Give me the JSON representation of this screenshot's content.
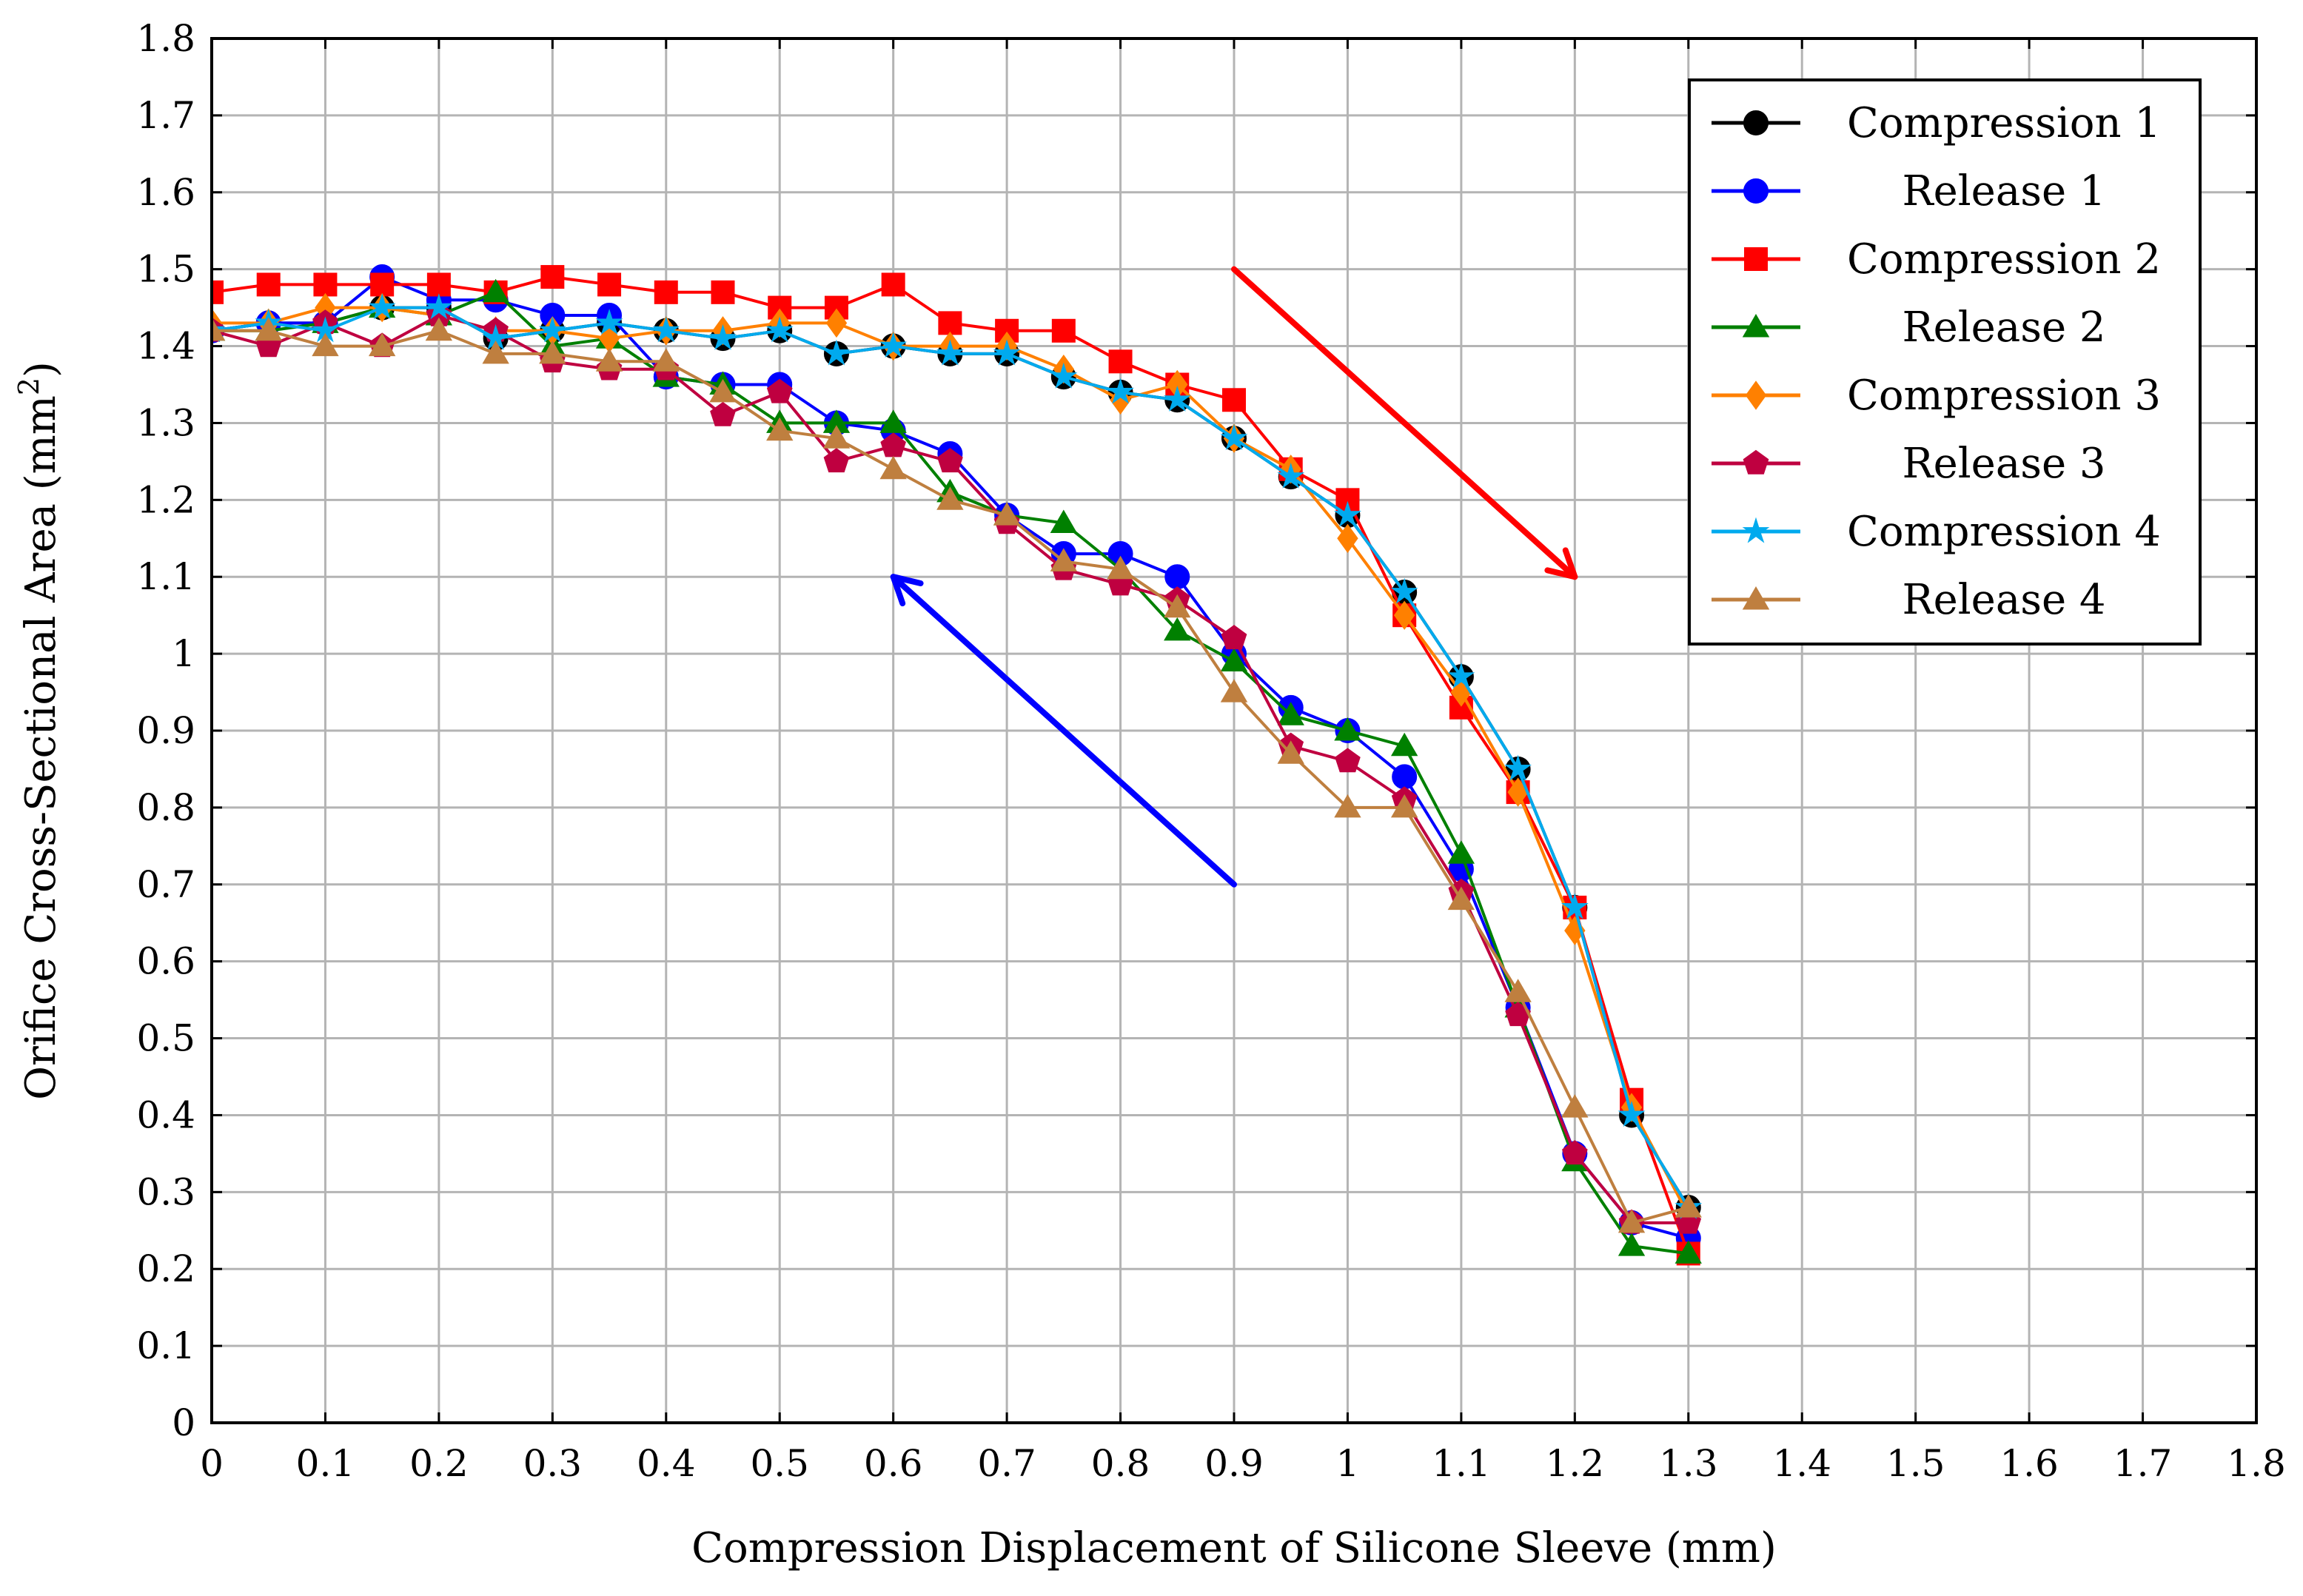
{
  "chart_data": {
    "type": "line",
    "title": "",
    "xlabel": "Compression Displacement of Silicone Sleeve (mm)",
    "ylabel": "Orifice Cross-Sectional Area (mm",
    "ylabel_sup": "2",
    "ylabel_tail": ")",
    "xlim": [
      0,
      1.8
    ],
    "ylim": [
      0,
      1.8
    ],
    "x_ticks": [
      "0",
      "0.1",
      "0.2",
      "0.3",
      "0.4",
      "0.5",
      "0.6",
      "0.7",
      "0.8",
      "0.9",
      "1",
      "1.1",
      "1.2",
      "1.3",
      "1.4",
      "1.5",
      "1.6",
      "1.7",
      "1.8"
    ],
    "y_ticks": [
      "0",
      "0.1",
      "0.2",
      "0.3",
      "0.4",
      "0.5",
      "0.6",
      "0.7",
      "0.8",
      "0.9",
      "1",
      "1.1",
      "1.2",
      "1.3",
      "1.4",
      "1.5",
      "1.6",
      "1.7",
      "1.8"
    ],
    "grid": true,
    "legend_position": "top-right",
    "x": [
      0,
      0.05,
      0.1,
      0.15,
      0.2,
      0.25,
      0.3,
      0.35,
      0.4,
      0.45,
      0.5,
      0.55,
      0.6,
      0.65,
      0.7,
      0.75,
      0.8,
      0.85,
      0.9,
      0.95,
      1,
      1.05,
      1.1,
      1.15,
      1.2,
      1.25,
      1.3
    ],
    "series": [
      {
        "name": "Compression 1",
        "color": "#000000",
        "marker": "circle",
        "values": [
          1.42,
          1.43,
          1.43,
          1.45,
          1.45,
          1.41,
          1.42,
          1.43,
          1.42,
          1.41,
          1.42,
          1.39,
          1.4,
          1.39,
          1.39,
          1.36,
          1.34,
          1.33,
          1.28,
          1.23,
          1.18,
          1.08,
          0.97,
          0.85,
          0.67,
          0.4,
          0.28
        ]
      },
      {
        "name": "Release 1",
        "color": "#0000ff",
        "marker": "circle",
        "values": [
          1.42,
          1.43,
          1.43,
          1.49,
          1.46,
          1.46,
          1.44,
          1.44,
          1.36,
          1.35,
          1.35,
          1.3,
          1.29,
          1.26,
          1.18,
          1.13,
          1.13,
          1.1,
          1.0,
          0.93,
          0.9,
          0.84,
          0.72,
          0.54,
          0.35,
          0.26,
          0.24
        ]
      },
      {
        "name": "Compression 2",
        "color": "#ff0000",
        "marker": "square",
        "values": [
          1.47,
          1.48,
          1.48,
          1.48,
          1.48,
          1.47,
          1.49,
          1.48,
          1.47,
          1.47,
          1.45,
          1.45,
          1.48,
          1.43,
          1.42,
          1.42,
          1.38,
          1.35,
          1.33,
          1.24,
          1.2,
          1.05,
          0.93,
          0.82,
          0.67,
          0.42,
          0.22
        ]
      },
      {
        "name": "Release 2",
        "color": "#008000",
        "marker": "triangle",
        "values": [
          1.42,
          1.42,
          1.43,
          1.45,
          1.44,
          1.47,
          1.4,
          1.41,
          1.36,
          1.35,
          1.3,
          1.3,
          1.3,
          1.21,
          1.18,
          1.17,
          1.11,
          1.03,
          0.99,
          0.92,
          0.9,
          0.88,
          0.74,
          0.54,
          0.34,
          0.23,
          0.22
        ]
      },
      {
        "name": "Compression 3",
        "color": "#ff8000",
        "marker": "diamond",
        "values": [
          1.43,
          1.43,
          1.45,
          1.45,
          1.44,
          1.42,
          1.42,
          1.41,
          1.42,
          1.42,
          1.43,
          1.43,
          1.4,
          1.4,
          1.4,
          1.37,
          1.33,
          1.35,
          1.28,
          1.24,
          1.15,
          1.05,
          0.95,
          0.82,
          0.64,
          0.41,
          0.27
        ]
      },
      {
        "name": "Release 3",
        "color": "#bf0040",
        "marker": "pentagon",
        "values": [
          1.42,
          1.4,
          1.43,
          1.4,
          1.44,
          1.42,
          1.38,
          1.37,
          1.37,
          1.31,
          1.34,
          1.25,
          1.27,
          1.25,
          1.17,
          1.11,
          1.09,
          1.07,
          1.02,
          0.88,
          0.86,
          0.81,
          0.69,
          0.53,
          0.35,
          0.26,
          0.26
        ]
      },
      {
        "name": "Compression 4",
        "color": "#00aaee",
        "marker": "star",
        "values": [
          1.42,
          1.43,
          1.42,
          1.45,
          1.45,
          1.41,
          1.42,
          1.43,
          1.42,
          1.41,
          1.42,
          1.39,
          1.4,
          1.39,
          1.39,
          1.36,
          1.34,
          1.33,
          1.28,
          1.23,
          1.18,
          1.08,
          0.97,
          0.85,
          0.67,
          0.4,
          0.28
        ]
      },
      {
        "name": "Release 4",
        "color": "#bf7f3f",
        "marker": "triangle",
        "values": [
          1.42,
          1.42,
          1.4,
          1.4,
          1.42,
          1.39,
          1.39,
          1.38,
          1.38,
          1.34,
          1.29,
          1.28,
          1.24,
          1.2,
          1.18,
          1.12,
          1.11,
          1.06,
          0.95,
          0.87,
          0.8,
          0.8,
          0.68,
          0.56,
          0.41,
          0.26,
          0.28
        ]
      }
    ],
    "annotations": [
      {
        "type": "arrow",
        "color": "#ff0000",
        "from": [
          0.9,
          1.5
        ],
        "to": [
          1.2,
          1.1
        ]
      },
      {
        "type": "arrow",
        "color": "#0000ff",
        "from": [
          0.9,
          0.7
        ],
        "to": [
          0.6,
          1.1
        ]
      }
    ]
  }
}
